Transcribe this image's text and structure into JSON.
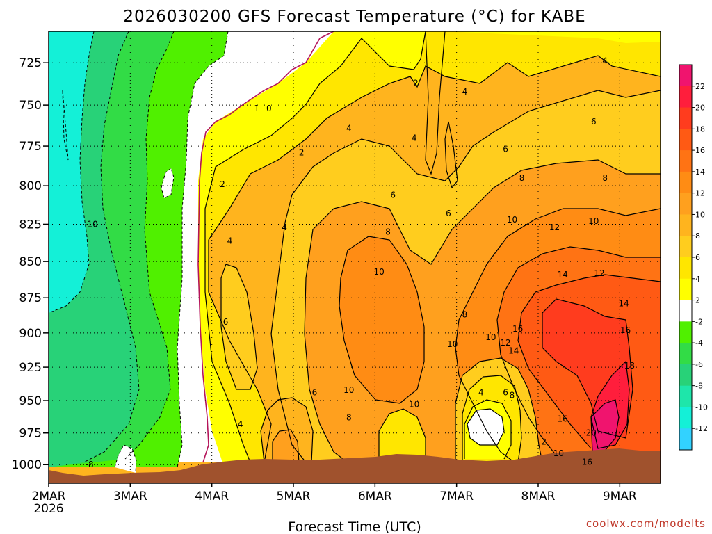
{
  "chart_data": {
    "type": "heatmap",
    "title": "2026030200  GFS Forecast Temperature (°C) for KABE",
    "xlabel": "Forecast Time (UTC)",
    "ylabel": "",
    "credit": "coolwx.com/modelts",
    "x_ticks": [
      "2MAR",
      "3MAR",
      "4MAR",
      "5MAR",
      "6MAR",
      "7MAR",
      "8MAR",
      "9MAR"
    ],
    "x_year": "2026",
    "xlim": [
      0,
      7.5
    ],
    "y_ticks": [
      725,
      750,
      775,
      800,
      825,
      850,
      875,
      900,
      925,
      950,
      975,
      1000
    ],
    "ylim": [
      1015,
      707
    ],
    "colorbar_levels": [
      22,
      20,
      18,
      16,
      14,
      12,
      10,
      8,
      6,
      4,
      2,
      -2,
      -4,
      -6,
      -8,
      -10,
      -12
    ],
    "colorbar_colors": [
      "#f0146e",
      "#ff1e3c",
      "#ff3c1e",
      "#ff5a14",
      "#ff7314",
      "#ff8c14",
      "#ffa01e",
      "#ffb41e",
      "#ffcd1e",
      "#ffe600",
      "#ffff00",
      "#ffffff",
      "#50f000",
      "#32dc46",
      "#28d278",
      "#1ee6aa",
      "#14f0d7",
      "#32d2ff"
    ],
    "regions": [
      {
        "name": "cold-band",
        "range": "< -10",
        "color": "#14f0d7",
        "t_start": 0.0,
        "t_end": 0.55
      },
      {
        "name": "band-minus-8",
        "range": "-10 to -6",
        "color": "#28d278",
        "t_start": 0.0,
        "t_end": 1.5
      },
      {
        "name": "band-minus-4",
        "range": "-4 to -2",
        "color": "#50f000",
        "t_start": 0.5,
        "t_end": 2.4
      },
      {
        "name": "near-zero",
        "range": "-2 to 2",
        "color": "#ffffff",
        "t_start": 1.7,
        "t_end": 3.7
      },
      {
        "name": "band-2-4",
        "range": "2 to 4",
        "color": "#ffff00",
        "t_start": 2.0,
        "t_end": 5.0
      },
      {
        "name": "band-4-6",
        "range": "4 to 6",
        "color": "#ffe600",
        "t_start": 2.1,
        "t_end": 7.5
      },
      {
        "name": "band-6-10",
        "range": "6 to 10",
        "color": "#ffb41e",
        "t_start": 2.2,
        "t_end": 7.5
      },
      {
        "name": "warm-core-6mar",
        "range": "10 to 12",
        "color": "#ff8c14",
        "t_start": 3.4,
        "t_end": 5.6
      },
      {
        "name": "warm-core-8mar",
        "range": "12 to 18",
        "color": "#ff5a14",
        "t_start": 6.0,
        "t_end": 7.5
      },
      {
        "name": "hot-spot-9mar",
        "range": "> 20",
        "color": "#f0146e",
        "t_start": 6.65,
        "t_end": 6.95
      }
    ],
    "contour_labels": [
      {
        "text": "-10",
        "t": 0.52,
        "p": 825
      },
      {
        "text": "-8",
        "t": 0.5,
        "p": 1000
      },
      {
        "text": "0",
        "t": 2.7,
        "p": 752
      },
      {
        "text": "1",
        "t": 2.55,
        "p": 752
      },
      {
        "text": "2",
        "t": 2.13,
        "p": 799
      },
      {
        "text": "2",
        "t": 3.1,
        "p": 779
      },
      {
        "text": "2",
        "t": 4.5,
        "p": 737
      },
      {
        "text": "2",
        "t": 6.07,
        "p": 982
      },
      {
        "text": "4",
        "t": 2.22,
        "p": 836
      },
      {
        "text": "4",
        "t": 2.89,
        "p": 827
      },
      {
        "text": "4",
        "t": 3.68,
        "p": 764
      },
      {
        "text": "4",
        "t": 4.48,
        "p": 770
      },
      {
        "text": "4",
        "t": 5.1,
        "p": 742
      },
      {
        "text": "4",
        "t": 5.3,
        "p": 944
      },
      {
        "text": "4",
        "t": 6.82,
        "p": 724
      },
      {
        "text": "4",
        "t": 2.35,
        "p": 968
      },
      {
        "text": "6",
        "t": 2.17,
        "p": 892
      },
      {
        "text": "6",
        "t": 3.26,
        "p": 944
      },
      {
        "text": "6",
        "t": 4.22,
        "p": 806
      },
      {
        "text": "6",
        "t": 4.9,
        "p": 818
      },
      {
        "text": "6",
        "t": 5.6,
        "p": 777
      },
      {
        "text": "6",
        "t": 6.68,
        "p": 760
      },
      {
        "text": "6",
        "t": 5.6,
        "p": 944
      },
      {
        "text": "8",
        "t": 3.68,
        "p": 963
      },
      {
        "text": "8",
        "t": 4.16,
        "p": 830
      },
      {
        "text": "8",
        "t": 5.1,
        "p": 887
      },
      {
        "text": "8",
        "t": 5.8,
        "p": 795
      },
      {
        "text": "8",
        "t": 6.82,
        "p": 795
      },
      {
        "text": "8",
        "t": 5.68,
        "p": 946
      },
      {
        "text": "10",
        "t": 3.68,
        "p": 942
      },
      {
        "text": "10",
        "t": 4.05,
        "p": 857
      },
      {
        "text": "10",
        "t": 4.48,
        "p": 953
      },
      {
        "text": "10",
        "t": 4.95,
        "p": 908
      },
      {
        "text": "10",
        "t": 5.42,
        "p": 903
      },
      {
        "text": "10",
        "t": 5.68,
        "p": 822
      },
      {
        "text": "10",
        "t": 6.68,
        "p": 823
      },
      {
        "text": "10",
        "t": 6.25,
        "p": 991
      },
      {
        "text": "12",
        "t": 5.6,
        "p": 907
      },
      {
        "text": "12",
        "t": 6.2,
        "p": 827
      },
      {
        "text": "12",
        "t": 6.75,
        "p": 858
      },
      {
        "text": "14",
        "t": 5.7,
        "p": 913
      },
      {
        "text": "14",
        "t": 6.3,
        "p": 859
      },
      {
        "text": "14",
        "t": 7.05,
        "p": 879
      },
      {
        "text": "16",
        "t": 5.75,
        "p": 897
      },
      {
        "text": "16",
        "t": 6.3,
        "p": 964
      },
      {
        "text": "16",
        "t": 6.6,
        "p": 998
      },
      {
        "text": "16",
        "t": 7.07,
        "p": 898
      },
      {
        "text": "18",
        "t": 7.12,
        "p": 924
      },
      {
        "text": "20",
        "t": 6.65,
        "p": 975
      }
    ]
  }
}
